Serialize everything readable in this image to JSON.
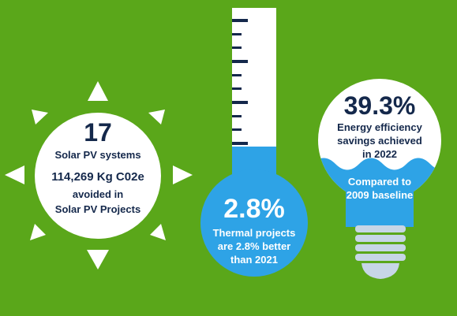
{
  "colors": {
    "background": "#5aa71a",
    "navy": "#14284b",
    "sky_blue": "#2ea3e6",
    "white": "#ffffff",
    "bulb_base": "#c7d6e6"
  },
  "solar": {
    "icon": "sun-icon",
    "count": "17",
    "systems_label": "Solar PV systems",
    "co2_value": "114,269 Kg C02e",
    "co2_line1": "avoided in",
    "co2_line2": "Solar PV Projects"
  },
  "thermal": {
    "icon": "thermometer-icon",
    "percent": "2.8%",
    "line1": "Thermal projects",
    "line2": "are 2.8% better",
    "line3": "than 2021"
  },
  "efficiency": {
    "icon": "light-bulb-icon",
    "percent": "39.3%",
    "line1": "Energy efficiency",
    "line2": "savings achieved",
    "line3": "in 2022",
    "baseline_line1": "Compared to",
    "baseline_line2": "2009 baseline"
  }
}
